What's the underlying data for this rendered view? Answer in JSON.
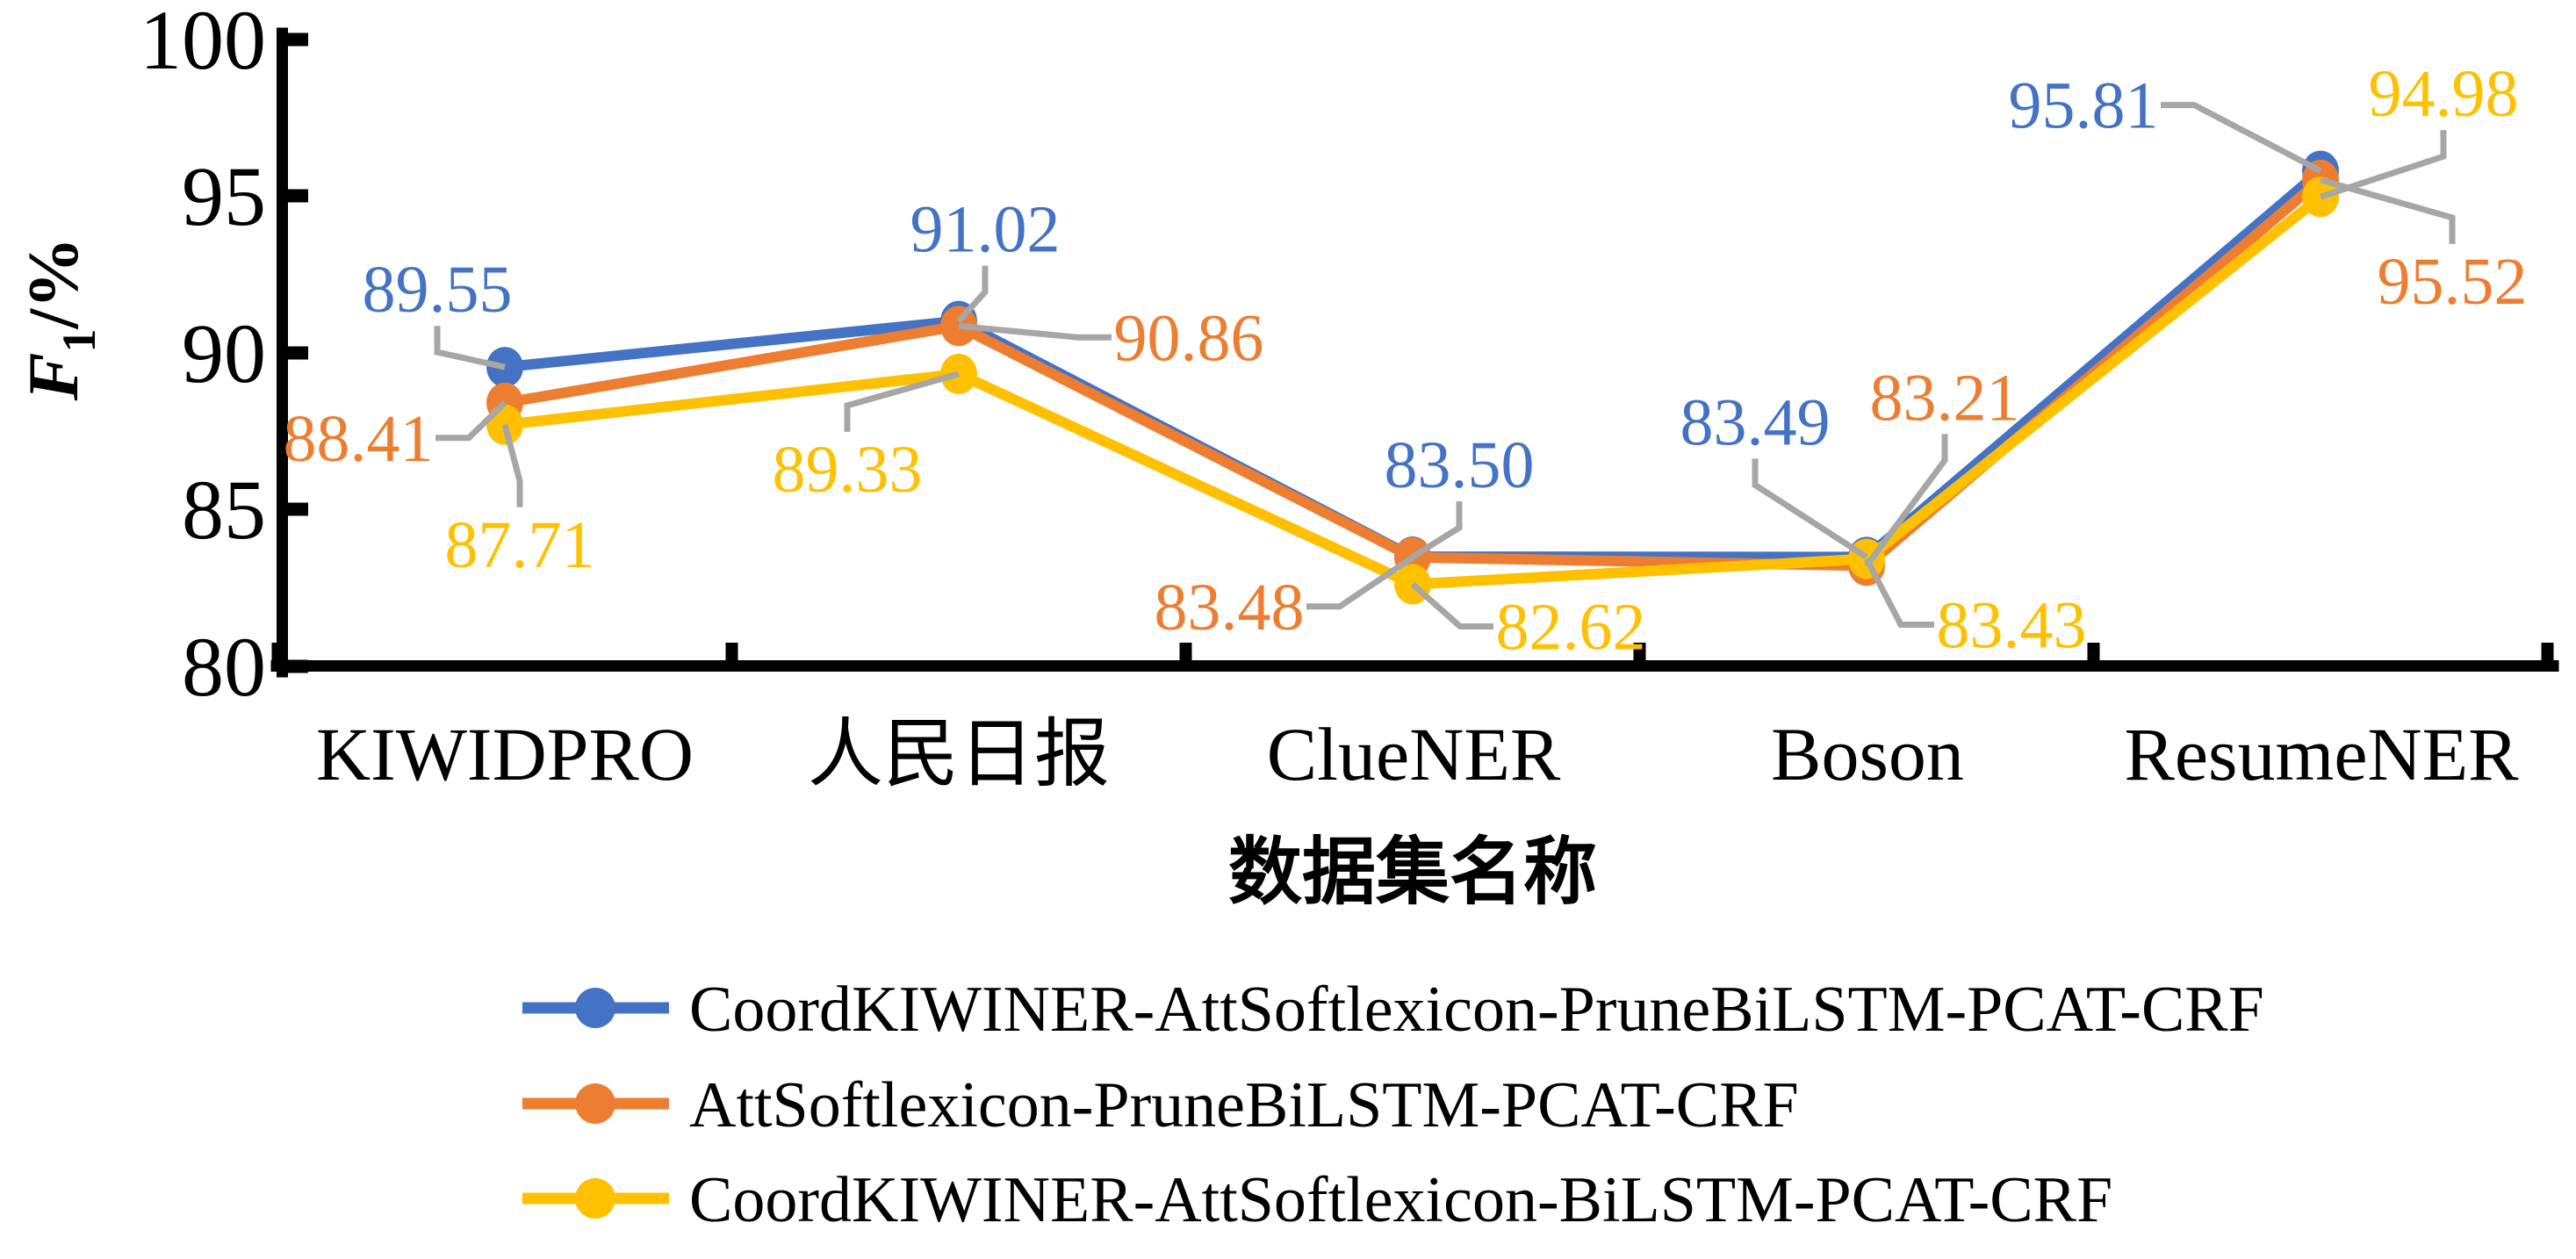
{
  "chart_data": {
    "type": "line",
    "xlabel": "数据集名称",
    "ylabel": {
      "symbol": "F",
      "subscript": "1",
      "unit": "/%"
    },
    "categories": [
      "KIWIDPRO",
      "人民日报",
      "ClueNER",
      "Boson",
      "ResumeNER"
    ],
    "y_ticks": [
      "100",
      "95",
      "90",
      "85",
      "80"
    ],
    "ylim": [
      80,
      100
    ],
    "grid": false,
    "legend_position": "bottom-left",
    "marker": "circle",
    "leader_color": "#A6A6A6",
    "axis_color": "#000000",
    "series": [
      {
        "name": "CoordKIWINER-AttSoftlexicon-PruneBiLSTM-PCAT-CRF",
        "color": "#4472C4",
        "values": [
          89.55,
          91.02,
          83.5,
          83.49,
          95.81
        ],
        "label_offsets": [
          [
            -77,
            -89
          ],
          [
            30,
            -105
          ],
          [
            53,
            -105
          ],
          [
            -127,
            -154
          ],
          [
            -270,
            -75
          ]
        ]
      },
      {
        "name": "AttSoftlexicon-PruneBiLSTM-PCAT-CRF",
        "color": "#ED7D31",
        "values": [
          88.41,
          90.86,
          83.48,
          83.21,
          95.52
        ],
        "label_offsets": [
          [
            -167,
            40
          ],
          [
            262,
            13
          ],
          [
            -209,
            56
          ],
          [
            89,
            -192
          ],
          [
            150,
            115
          ]
        ]
      },
      {
        "name": "CoordKIWINER-AttSoftlexicon-BiLSTM-PCAT-CRF",
        "color": "#FFC000",
        "values": [
          87.71,
          89.33,
          82.62,
          83.43,
          94.98
        ],
        "label_offsets": [
          [
            17,
            136
          ],
          [
            -127,
            108
          ],
          [
            180,
            48
          ],
          [
            165,
            75
          ],
          [
            140,
            -118
          ]
        ]
      }
    ]
  }
}
